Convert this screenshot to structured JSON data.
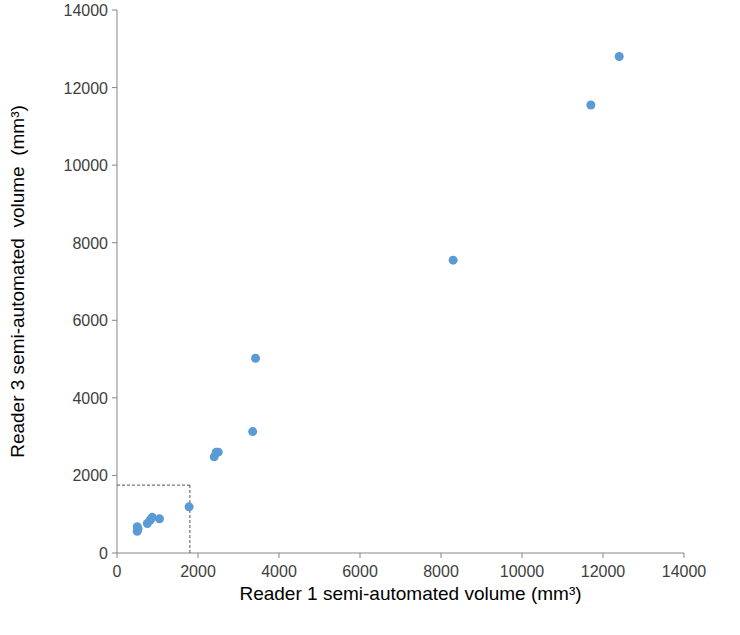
{
  "chart_data": {
    "type": "scatter",
    "x_label": "Reader 1 semi-automated volume (mm³)",
    "y_label": "Reader 3 semi-automated  volume  (mm³)",
    "x": [
      500,
      500,
      520,
      750,
      820,
      870,
      1050,
      1780,
      2400,
      2450,
      2500,
      3350,
      3420,
      8300,
      11700,
      12400
    ],
    "values": [
      680,
      560,
      620,
      760,
      850,
      920,
      880,
      1190,
      2480,
      2600,
      2600,
      3130,
      5020,
      7550,
      11550,
      12800
    ],
    "color": "#5b9bd5",
    "marker": "circle",
    "xlim": [
      0,
      14000
    ],
    "ylim": [
      0,
      14000
    ],
    "xticks": [
      0,
      2000,
      4000,
      6000,
      8000,
      10000,
      12000,
      14000
    ],
    "yticks": [
      0,
      2000,
      4000,
      6000,
      8000,
      10000,
      12000,
      14000
    ],
    "reference_x": 1800,
    "reference_y": 1750,
    "grid": false
  }
}
